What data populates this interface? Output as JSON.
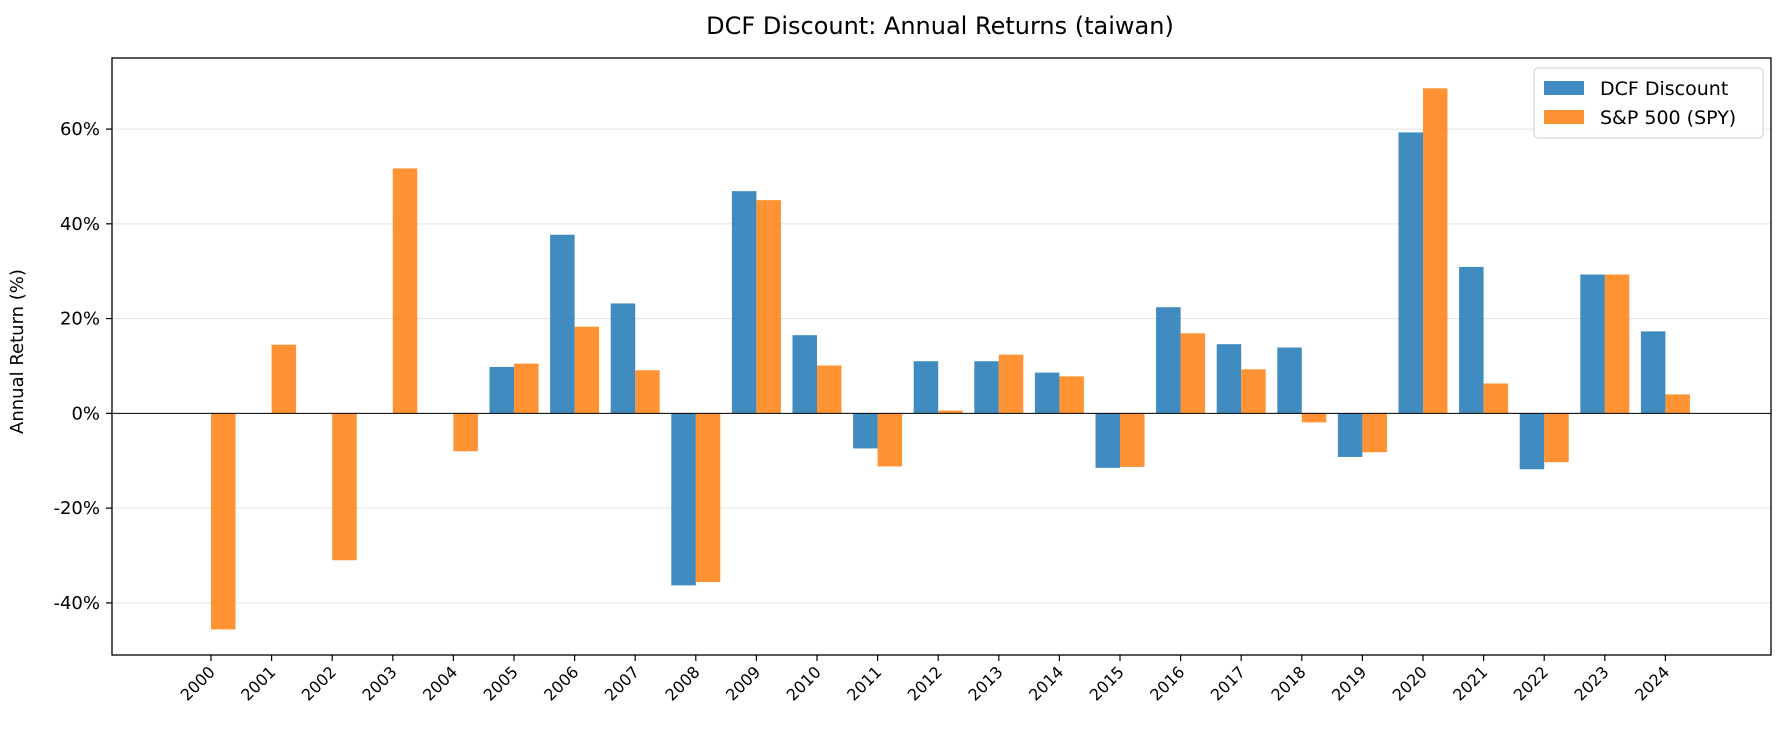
{
  "chart_data": {
    "type": "bar",
    "title": "DCF Discount: Annual Returns (taiwan)",
    "xlabel": "",
    "ylabel": "Annual Return (%)",
    "ylim": [
      -51,
      75
    ],
    "yticks": [
      -40,
      -20,
      0,
      20,
      40,
      60
    ],
    "ytick_labels": [
      "-40%",
      "-20%",
      "0%",
      "20%",
      "40%",
      "60%"
    ],
    "grid": "y",
    "legend_position": "top-right",
    "categories": [
      "2000",
      "2001",
      "2002",
      "2003",
      "2004",
      "2005",
      "2006",
      "2007",
      "2008",
      "2009",
      "2010",
      "2011",
      "2012",
      "2013",
      "2014",
      "2015",
      "2016",
      "2017",
      "2018",
      "2019",
      "2020",
      "2021",
      "2022",
      "2023",
      "2024"
    ],
    "series": [
      {
        "name": "DCF Discount",
        "color": "#1f77b4",
        "values": [
          null,
          null,
          null,
          null,
          null,
          9.8,
          37.7,
          23.2,
          -36.3,
          46.9,
          16.5,
          -7.4,
          11.0,
          11.0,
          8.6,
          -11.5,
          22.4,
          14.6,
          13.9,
          -9.2,
          59.3,
          30.9,
          -11.8,
          29.3,
          17.3
        ]
      },
      {
        "name": "S&P 500 (SPY)",
        "color": "#ff7f0e",
        "values": [
          -45.6,
          14.5,
          -31.0,
          51.7,
          -8.0,
          10.5,
          18.3,
          9.1,
          -35.6,
          45.0,
          10.1,
          -11.2,
          0.6,
          12.4,
          7.8,
          -11.3,
          16.9,
          9.3,
          -1.9,
          -8.2,
          68.6,
          6.3,
          -10.3,
          29.3,
          4.0
        ]
      }
    ]
  }
}
